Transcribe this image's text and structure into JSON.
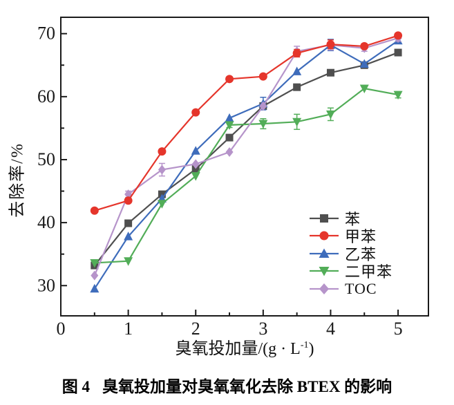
{
  "figure": {
    "caption_fig": "图 4",
    "caption_text": "臭氧投加量对臭氧氧化去除 BTEX 的影响"
  },
  "chart_data": {
    "type": "line",
    "title": "",
    "ylabel": "去除率/%",
    "xlabel": {
      "prefix": "臭氧投加量/(g · L",
      "sup": "-1",
      "suffix": ")"
    },
    "x": [
      0.5,
      1,
      1.5,
      2,
      2.5,
      3,
      3.5,
      4,
      4.5,
      5
    ],
    "xlim": [
      0,
      5.45
    ],
    "ylim": [
      25.2,
      72.6
    ],
    "x_major_ticks": [
      0,
      1,
      2,
      3,
      4,
      5
    ],
    "x_minor_ticks": [
      0.5,
      1.5,
      2.5,
      3.5,
      4.5
    ],
    "y_major_ticks": [
      30,
      40,
      50,
      60,
      70
    ],
    "y_minor_ticks": [
      35,
      45,
      55,
      65
    ],
    "grid": false,
    "legend_position": "inside lower right",
    "frame_color": "#1a1a1a",
    "series": [
      {
        "name": "苯",
        "marker": "square",
        "color": "#4f4f4f",
        "values": [
          33.2,
          39.9,
          44.5,
          48.5,
          53.5,
          58.5,
          61.5,
          63.8,
          65.0,
          67.0
        ],
        "errors": [
          0,
          0,
          0,
          0,
          0,
          0,
          0,
          0,
          0,
          0
        ]
      },
      {
        "name": "甲苯",
        "marker": "circle",
        "color": "#e5352b",
        "values": [
          41.9,
          43.5,
          51.3,
          57.5,
          62.8,
          63.2,
          66.9,
          68.3,
          68.0,
          69.7
        ],
        "errors": [
          0,
          0,
          0,
          0,
          0,
          0,
          0.6,
          0.7,
          0.4,
          0.4
        ]
      },
      {
        "name": "乙苯",
        "marker": "triangle-up",
        "color": "#3e6cbb",
        "values": [
          29.5,
          37.8,
          43.8,
          51.4,
          56.6,
          58.9,
          64.0,
          68.2,
          65.2,
          68.9
        ],
        "errors": [
          0,
          0,
          0,
          0,
          0,
          1.0,
          0,
          0.9,
          0,
          0
        ]
      },
      {
        "name": "二甲苯",
        "marker": "triangle-down",
        "color": "#52ad58",
        "values": [
          33.6,
          33.9,
          43.0,
          47.4,
          55.5,
          55.7,
          56.0,
          57.2,
          61.3,
          60.3
        ],
        "errors": [
          0,
          0,
          0,
          0,
          0.4,
          0.8,
          1.2,
          1.0,
          0,
          0.5
        ]
      },
      {
        "name": "TOC",
        "marker": "diamond",
        "color": "#b694ca",
        "values": [
          31.6,
          44.5,
          48.4,
          49.3,
          51.2,
          58.5,
          67.2,
          68.2,
          67.7,
          69.3
        ],
        "errors": [
          0,
          0.5,
          1.0,
          0,
          0,
          0,
          0.8,
          0.8,
          0.5,
          0.5
        ]
      }
    ],
    "draw_order": [
      0,
      2,
      3,
      4,
      1
    ]
  }
}
